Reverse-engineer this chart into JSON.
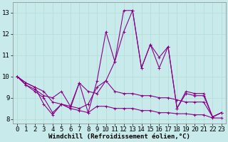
{
  "xlabel": "Windchill (Refroidissement éolien,°C)",
  "x_values": [
    0,
    1,
    2,
    3,
    4,
    5,
    6,
    7,
    8,
    9,
    10,
    11,
    12,
    13,
    14,
    15,
    16,
    17,
    18,
    19,
    20,
    21,
    22,
    23
  ],
  "series1": [
    10.0,
    9.7,
    9.5,
    8.7,
    8.2,
    8.7,
    8.5,
    9.7,
    8.3,
    9.8,
    12.1,
    10.7,
    13.1,
    13.1,
    10.4,
    11.5,
    10.4,
    11.4,
    8.5,
    9.3,
    9.2,
    9.2,
    8.1,
    8.3
  ],
  "series2": [
    10.0,
    9.7,
    9.5,
    9.3,
    8.8,
    8.7,
    8.6,
    8.5,
    8.7,
    9.5,
    9.8,
    10.7,
    12.1,
    13.1,
    10.4,
    11.5,
    10.9,
    11.4,
    8.5,
    9.2,
    9.1,
    9.1,
    8.1,
    8.3
  ],
  "series3": [
    10.0,
    9.6,
    9.4,
    9.1,
    9.0,
    9.3,
    8.6,
    9.7,
    9.3,
    9.2,
    9.8,
    9.3,
    9.2,
    9.2,
    9.1,
    9.1,
    9.0,
    9.0,
    8.9,
    8.8,
    8.8,
    8.8,
    8.1,
    8.3
  ],
  "series4": [
    10.0,
    9.6,
    9.3,
    9.0,
    8.3,
    8.7,
    8.5,
    8.4,
    8.3,
    8.6,
    8.6,
    8.5,
    8.5,
    8.5,
    8.4,
    8.4,
    8.3,
    8.3,
    8.25,
    8.25,
    8.2,
    8.2,
    8.05,
    8.05
  ],
  "line_color": "#880088",
  "marker": "+",
  "markersize": 3,
  "linewidth": 0.8,
  "ylim": [
    7.8,
    13.5
  ],
  "yticks": [
    8,
    9,
    10,
    11,
    12,
    13
  ],
  "xticks": [
    0,
    1,
    2,
    3,
    4,
    5,
    6,
    7,
    8,
    9,
    10,
    11,
    12,
    13,
    14,
    15,
    16,
    17,
    18,
    19,
    20,
    21,
    22,
    23
  ],
  "grid_color": "#b0ddd8",
  "bg_color": "#c8eaea",
  "xlabel_fontsize": 6.5,
  "tick_fontsize": 6.5
}
